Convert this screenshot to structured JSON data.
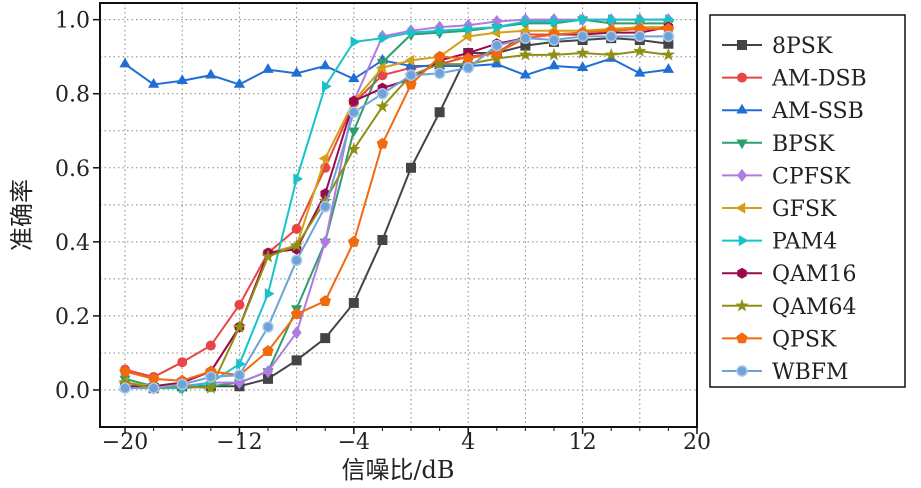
{
  "chart_data": {
    "type": "line",
    "title": "",
    "xlabel": "信噪比/dB",
    "ylabel": "准确率",
    "xlim": [
      -21.75,
      20
    ],
    "ylim": [
      -0.1,
      1.045
    ],
    "xticks": [
      -20,
      -12,
      -4,
      4,
      12,
      20
    ],
    "xtick_labels": [
      "−20",
      "−12",
      "−4",
      "4",
      "12",
      "20"
    ],
    "yticks": [
      0,
      0.2,
      0.4,
      0.6,
      0.8,
      1.0
    ],
    "ytick_labels": [
      "0.0",
      "0.2",
      "0.4",
      "0.6",
      "0.8",
      "1.0"
    ],
    "grid": true,
    "legend_position": "right-outside",
    "x": [
      -20,
      -18,
      -16,
      -14,
      -12,
      -10,
      -8,
      -6,
      -4,
      -2,
      0,
      2,
      4,
      6,
      8,
      10,
      12,
      14,
      16,
      18
    ],
    "series": [
      {
        "name": "8PSK",
        "color": "#444444",
        "marker": "square",
        "values": [
          0.01,
          0.005,
          0.01,
          0.01,
          0.01,
          0.03,
          0.08,
          0.14,
          0.235,
          0.405,
          0.6,
          0.75,
          0.91,
          0.91,
          0.93,
          0.94,
          0.945,
          0.95,
          0.945,
          0.935
        ]
      },
      {
        "name": "AM-DSB",
        "color": "#e84545",
        "marker": "circle",
        "values": [
          0.055,
          0.035,
          0.075,
          0.12,
          0.23,
          0.37,
          0.435,
          0.6,
          0.775,
          0.85,
          0.87,
          0.88,
          0.9,
          0.91,
          0.96,
          0.96,
          0.965,
          0.97,
          0.975,
          0.975
        ]
      },
      {
        "name": "AM-SSB",
        "color": "#1f6fd6",
        "marker": "triangle-up",
        "values": [
          0.88,
          0.825,
          0.835,
          0.85,
          0.825,
          0.865,
          0.855,
          0.875,
          0.84,
          0.89,
          0.875,
          0.875,
          0.875,
          0.88,
          0.85,
          0.875,
          0.87,
          0.895,
          0.855,
          0.865
        ]
      },
      {
        "name": "BPSK",
        "color": "#2e9e6e",
        "marker": "triangle-down",
        "values": [
          0.03,
          0.01,
          0.005,
          0.01,
          0.02,
          0.05,
          0.22,
          0.4,
          0.7,
          0.885,
          0.96,
          0.965,
          0.97,
          0.98,
          0.99,
          0.99,
          1.0,
          0.99,
          0.99,
          0.99
        ]
      },
      {
        "name": "CPFSK",
        "color": "#b07be0",
        "marker": "diamond",
        "values": [
          0.01,
          0.005,
          0.01,
          0.02,
          0.02,
          0.05,
          0.155,
          0.4,
          0.78,
          0.955,
          0.97,
          0.98,
          0.985,
          0.995,
          1.0,
          1.0,
          1.0,
          1.0,
          1.0,
          1.0
        ]
      },
      {
        "name": "GFSK",
        "color": "#d4a017",
        "marker": "triangle-left",
        "values": [
          0.02,
          0.01,
          0.02,
          0.05,
          0.17,
          0.37,
          0.39,
          0.625,
          0.78,
          0.87,
          0.89,
          0.9,
          0.955,
          0.965,
          0.97,
          0.97,
          0.97,
          0.975,
          0.98,
          0.98
        ]
      },
      {
        "name": "PAM4",
        "color": "#18c2c9",
        "marker": "triangle-right",
        "values": [
          0.01,
          0.005,
          0.005,
          0.02,
          0.07,
          0.26,
          0.57,
          0.82,
          0.94,
          0.95,
          0.965,
          0.97,
          0.975,
          0.98,
          0.995,
          0.995,
          1.0,
          1.0,
          1.0,
          1.0
        ]
      },
      {
        "name": "QAM16",
        "color": "#9b0a4f",
        "marker": "hexagon",
        "values": [
          0.01,
          0.01,
          0.02,
          0.05,
          0.17,
          0.37,
          0.38,
          0.53,
          0.78,
          0.815,
          0.84,
          0.89,
          0.91,
          0.935,
          0.95,
          0.96,
          0.96,
          0.965,
          0.965,
          0.98
        ]
      },
      {
        "name": "QAM64",
        "color": "#8f8f14",
        "marker": "star",
        "values": [
          0.02,
          0.005,
          0.01,
          0.005,
          0.17,
          0.36,
          0.39,
          0.51,
          0.65,
          0.765,
          0.85,
          0.88,
          0.88,
          0.895,
          0.905,
          0.905,
          0.91,
          0.905,
          0.915,
          0.905
        ]
      },
      {
        "name": "QPSK",
        "color": "#f26a0f",
        "marker": "pentagon",
        "values": [
          0.05,
          0.03,
          0.025,
          0.05,
          0.04,
          0.105,
          0.205,
          0.24,
          0.4,
          0.665,
          0.825,
          0.9,
          0.895,
          0.91,
          0.95,
          0.96,
          0.965,
          0.97,
          0.975,
          0.975
        ]
      },
      {
        "name": "WBFM",
        "color": "#6fa2d6",
        "marker": "circle-ring",
        "values": [
          0.005,
          0.005,
          0.015,
          0.035,
          0.04,
          0.17,
          0.35,
          0.495,
          0.75,
          0.8,
          0.85,
          0.855,
          0.87,
          0.93,
          0.95,
          0.945,
          0.955,
          0.955,
          0.955,
          0.955
        ]
      }
    ]
  }
}
